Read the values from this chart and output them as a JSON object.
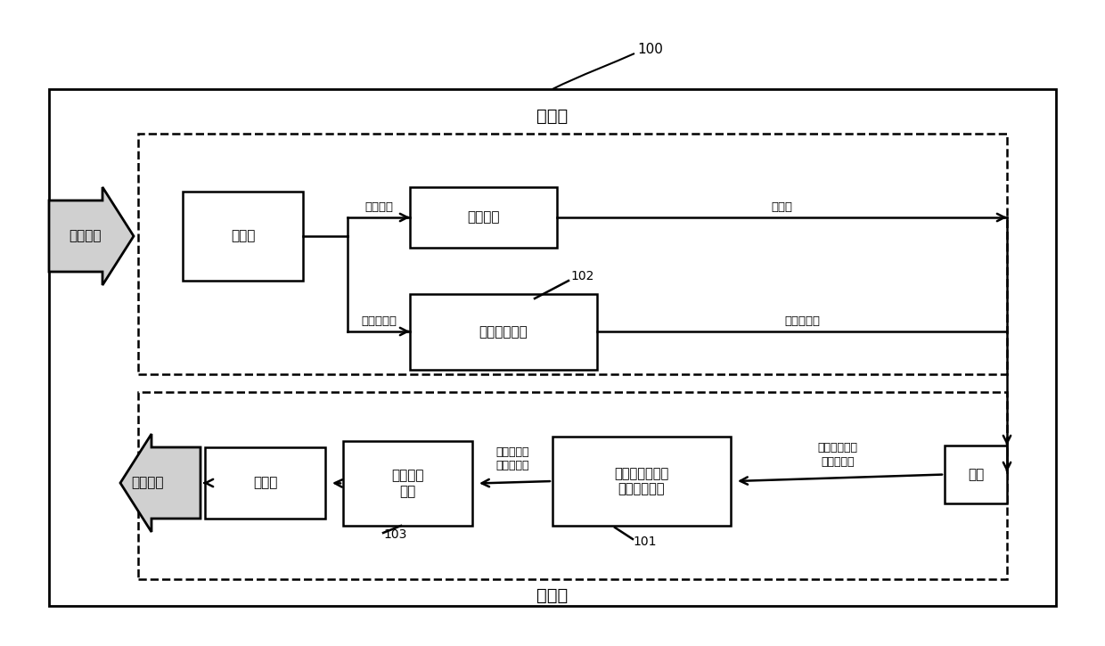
{
  "fig_width": 12.4,
  "fig_height": 7.25,
  "dpi": 100,
  "bg_color": "#ffffff",
  "label_100": "100",
  "encoding_label": "编码端",
  "decoding_label": "解码端",
  "label_102": "102",
  "label_103": "103",
  "label_101": "101",
  "text_video_enc": "视频信号",
  "text_video_dec": "视频信号",
  "text_chongpailie_enc": "重排列",
  "text_yasuo": "压缩感知",
  "text_zhangliang": "张量传感模块",
  "text_chongpailie_dec": "重排列",
  "text_chonggou_chuli": "重构处理\n模块",
  "text_zidian": "结构化稀疏张量\n字典学习模块",
  "text_chonggou": "重构",
  "text_guanjian": "关键帧块",
  "text_fei_guanjian": "非关键帧块",
  "text_celiang": "测量值",
  "text_zhangliang_celiang": "张量测量值",
  "text_jiegou": "结构化稀疏\n张量基矩阵",
  "text_chonggou_guanjian": "重构的关键帧\n张量块集合"
}
